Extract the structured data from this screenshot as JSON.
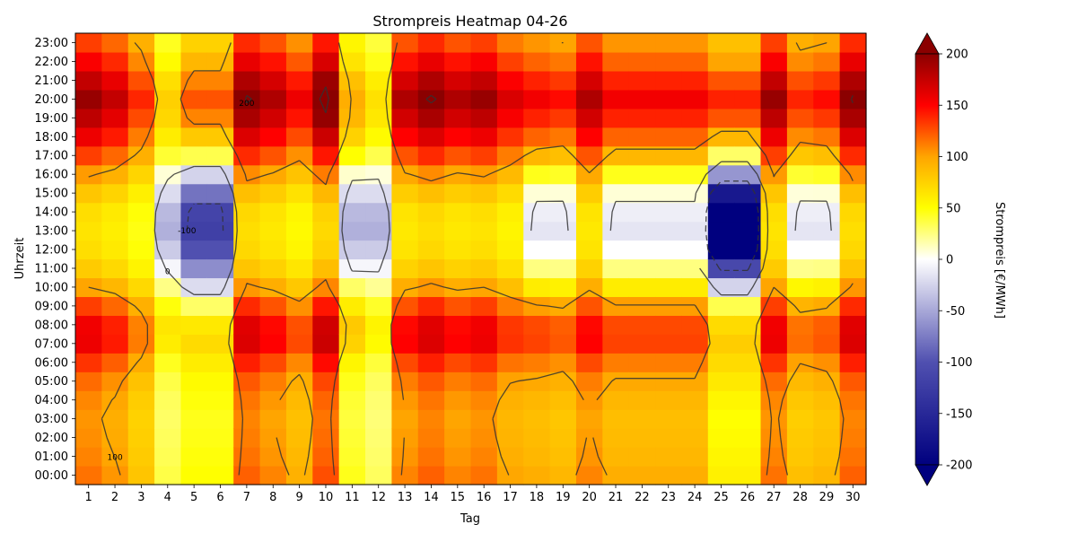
{
  "chart_data": {
    "type": "heatmap",
    "title": "Strompreis Heatmap 04-26",
    "xlabel": "Tag",
    "ylabel": "Uhrzeit",
    "x_ticks": [
      "1",
      "2",
      "3",
      "4",
      "5",
      "6",
      "7",
      "8",
      "9",
      "10",
      "11",
      "12",
      "13",
      "14",
      "15",
      "16",
      "17",
      "18",
      "19",
      "20",
      "21",
      "22",
      "23",
      "24",
      "25",
      "26",
      "27",
      "28",
      "29",
      "30"
    ],
    "y_ticks": [
      "00:00",
      "01:00",
      "02:00",
      "03:00",
      "04:00",
      "05:00",
      "06:00",
      "07:00",
      "08:00",
      "09:00",
      "10:00",
      "11:00",
      "12:00",
      "13:00",
      "14:00",
      "15:00",
      "16:00",
      "17:00",
      "18:00",
      "19:00",
      "20:00",
      "21:00",
      "22:00",
      "23:00"
    ],
    "colorbar": {
      "label": "Strompreis [€/MWh]",
      "min": -200,
      "max": 200,
      "ticks": [
        "-200",
        "-150",
        "-100",
        "-50",
        "0",
        "50",
        "100",
        "150",
        "200"
      ],
      "colors": [
        "#00007f",
        "#5050b0",
        "#ffffff",
        "#ffff00",
        "#ffa500",
        "#ff0000",
        "#8b0000"
      ]
    },
    "contour_labels": [
      "0",
      "100",
      "200",
      "-100"
    ],
    "daily_profile": {
      "hours": [
        0,
        1,
        2,
        3,
        4,
        5,
        6,
        7,
        8,
        9,
        10,
        11,
        12,
        13,
        14,
        15,
        16,
        17,
        18,
        19,
        20,
        21,
        22,
        23
      ],
      "day_type": {
        "normal": [
          110,
          105,
          102,
          100,
          104,
          112,
          128,
          150,
          148,
          125,
          95,
          75,
          65,
          62,
          65,
          78,
          98,
          125,
          150,
          170,
          185,
          168,
          145,
          125
        ],
        "low": [
          95,
          90,
          88,
          86,
          90,
          98,
          112,
          130,
          128,
          102,
          60,
          25,
          0,
          -15,
          -10,
          8,
          45,
          90,
          120,
          140,
          155,
          140,
          120,
          105
        ],
        "very_low": [
          50,
          48,
          46,
          45,
          48,
          52,
          60,
          70,
          62,
          30,
          -20,
          -65,
          -100,
          -120,
          -115,
          -80,
          -25,
          35,
          80,
          110,
          125,
          110,
          90,
          75
        ],
        "extreme": [
          58,
          55,
          52,
          50,
          55,
          62,
          70,
          78,
          70,
          35,
          -25,
          -110,
          -200,
          -220,
          -215,
          -170,
          -60,
          30,
          90,
          125,
          140,
          125,
          100,
          85
        ],
        "windy": [
          45,
          42,
          40,
          38,
          40,
          45,
          55,
          75,
          80,
          60,
          30,
          -5,
          -30,
          -45,
          -40,
          -20,
          10,
          50,
          75,
          90,
          95,
          85,
          65,
          55
        ]
      },
      "days": [
        "normal",
        "normal",
        "normal",
        "windy",
        "very_low",
        "very_low",
        "normal",
        "normal",
        "normal",
        "normal",
        "windy",
        "windy",
        "normal",
        "normal",
        "normal",
        "normal",
        "normal",
        "low",
        "low",
        "normal",
        "low",
        "low",
        "low",
        "low",
        "extreme",
        "extreme",
        "normal",
        "low",
        "low",
        "normal"
      ],
      "day_scale": [
        1.05,
        0.95,
        0.75,
        0.8,
        1.0,
        1.0,
        1.1,
        1.0,
        0.85,
        1.15,
        1.0,
        0.7,
        1.0,
        1.1,
        1.0,
        1.05,
        0.9,
        1.0,
        0.95,
        1.0,
        1.0,
        1.0,
        1.0,
        1.0,
        1.0,
        1.0,
        1.05,
        0.9,
        0.95,
        1.1
      ]
    }
  }
}
